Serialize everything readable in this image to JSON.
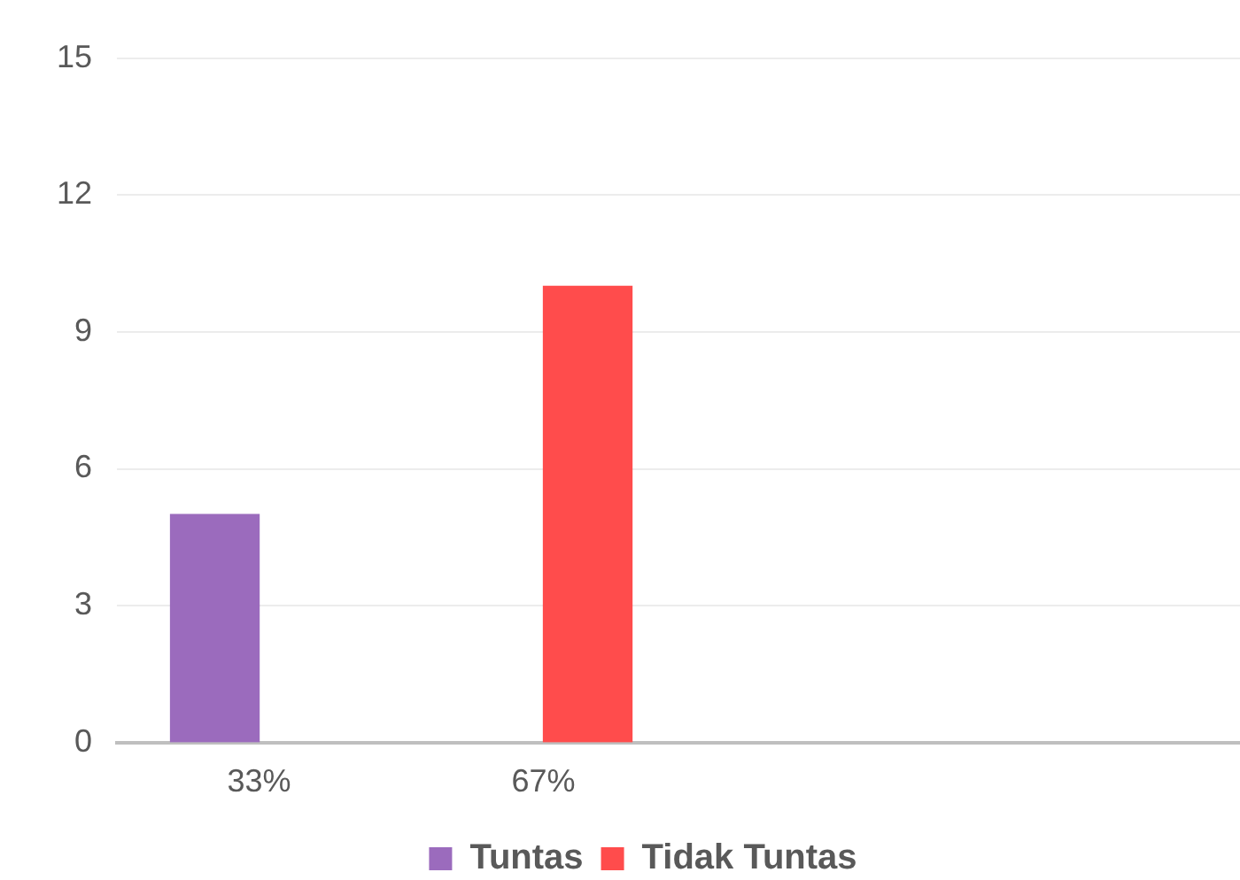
{
  "chart_data": {
    "type": "bar",
    "categories": [
      "33%",
      "67%",
      null,
      null
    ],
    "series": [
      {
        "name": "Tuntas",
        "color": "#9b6bbd",
        "values": [
          5,
          null,
          null,
          null
        ]
      },
      {
        "name": "Tidak Tuntas",
        "color": "#ff4c4c",
        "values": [
          null,
          10,
          null,
          null
        ]
      }
    ],
    "ylim": [
      0,
      15
    ],
    "yticks": [
      0,
      3,
      6,
      9,
      12,
      15
    ],
    "grid": "y",
    "legend": "bottom"
  }
}
